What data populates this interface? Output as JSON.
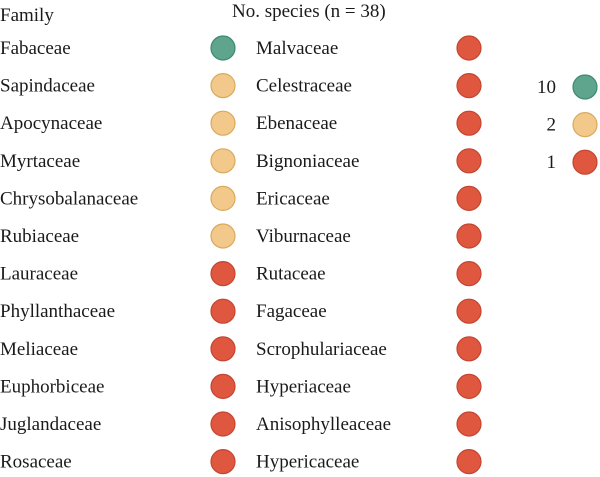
{
  "chart_data": {
    "type": "table",
    "title": "No. species (n = 38)",
    "column_header": "Family",
    "column1": [
      {
        "family": "Fabaceae",
        "count": 10
      },
      {
        "family": "Sapindaceae",
        "count": 2
      },
      {
        "family": "Apocynaceae",
        "count": 2
      },
      {
        "family": "Myrtaceae",
        "count": 2
      },
      {
        "family": "Chrysobalanaceae",
        "count": 2
      },
      {
        "family": "Rubiaceae",
        "count": 2
      },
      {
        "family": "Lauraceae",
        "count": 1
      },
      {
        "family": "Phyllanthaceae",
        "count": 1
      },
      {
        "family": "Meliaceae",
        "count": 1
      },
      {
        "family": "Euphorbiceae",
        "count": 1
      },
      {
        "family": "Juglandaceae",
        "count": 1
      },
      {
        "family": "Rosaceae",
        "count": 1
      }
    ],
    "column2": [
      {
        "family": "Malvaceae",
        "count": 1
      },
      {
        "family": "Celestraceae",
        "count": 1
      },
      {
        "family": "Ebenaceae",
        "count": 1
      },
      {
        "family": "Bignoniaceae",
        "count": 1
      },
      {
        "family": "Ericaceae",
        "count": 1
      },
      {
        "family": "Viburnaceae",
        "count": 1
      },
      {
        "family": "Rutaceae",
        "count": 1
      },
      {
        "family": "Fagaceae",
        "count": 1
      },
      {
        "family": "Scrophulariaceae",
        "count": 1
      },
      {
        "family": "Hyperiaceae",
        "count": 1
      },
      {
        "family": "Anisophylleaceae",
        "count": 1
      },
      {
        "family": "Hypericaceae",
        "count": 1
      }
    ],
    "legend": [
      {
        "label": "10",
        "count": 10
      },
      {
        "label": "2",
        "count": 2
      },
      {
        "label": "1",
        "count": 1
      }
    ],
    "colors": {
      "10": {
        "fill": "#5fa48c",
        "stroke": "#3d8a70"
      },
      "2": {
        "fill": "#f2c98a",
        "stroke": "#d9aa5c"
      },
      "1": {
        "fill": "#e0573f",
        "stroke": "#c44530"
      }
    }
  }
}
